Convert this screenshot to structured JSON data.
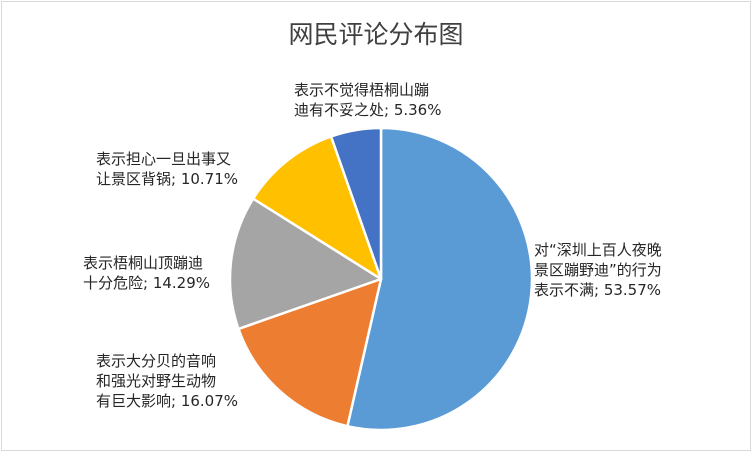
{
  "chart_data": {
    "type": "pie",
    "title": "网民评论分布图",
    "slices": [
      {
        "lines": [
          "对“深圳上百人夜晚",
          "景区蹦野迪”的行为",
          "表示不满; 53.57%"
        ],
        "value": 53.57,
        "color": "#5b9bd5"
      },
      {
        "lines": [
          "表示大分贝的音响",
          "和强光对野生动物",
          "有巨大影响; 16.07%"
        ],
        "value": 16.07,
        "color": "#ed7d31"
      },
      {
        "lines": [
          "表示梧桐山顶蹦迪",
          "十分危险; 14.29%"
        ],
        "value": 14.29,
        "color": "#a5a5a5"
      },
      {
        "lines": [
          "表示担心一旦出事又",
          "让景区背锅; 10.71%"
        ],
        "value": 10.71,
        "color": "#ffc000"
      },
      {
        "lines": [
          "表示不觉得梧桐山蹦",
          "迪有不妥之处; 5.36%"
        ],
        "value": 5.36,
        "color": "#4472c4"
      }
    ]
  }
}
